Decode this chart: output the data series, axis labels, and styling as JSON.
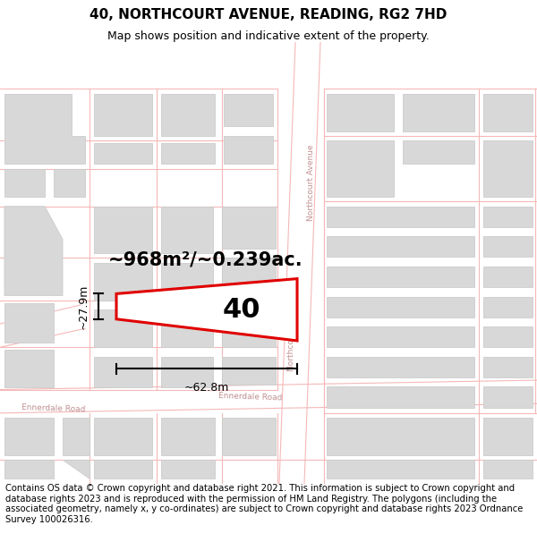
{
  "title": "40, NORTHCOURT AVENUE, READING, RG2 7HD",
  "subtitle": "Map shows position and indicative extent of the property.",
  "footer": "Contains OS data © Crown copyright and database right 2021. This information is subject to Crown copyright and database rights 2023 and is reproduced with the permission of HM Land Registry. The polygons (including the associated geometry, namely x, y co-ordinates) are subject to Crown copyright and database rights 2023 Ordnance Survey 100026316.",
  "area_label": "~968m²/~0.239ac.",
  "width_label": "~62.8m",
  "height_label": "~27.9m",
  "number_label": "40",
  "background_color": "#ffffff",
  "road_color": "#f5b8b8",
  "building_color": "#d8d8d8",
  "building_outline": "#cccccc",
  "highlight_color": "#e00000",
  "label_color": "#c09090",
  "dim_line_color": "#000000",
  "title_fontsize": 11,
  "subtitle_fontsize": 9,
  "footer_fontsize": 7.2,
  "area_fontsize": 15,
  "dim_fontsize": 9,
  "num_fontsize": 22
}
